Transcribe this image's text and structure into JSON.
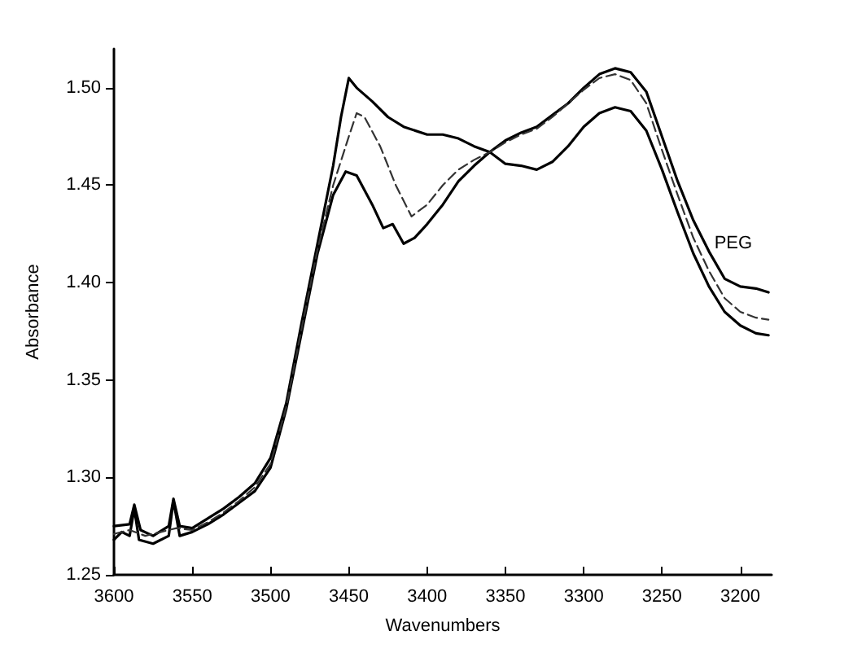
{
  "chart_data": {
    "type": "line",
    "xlabel": "Wavenumbers",
    "ylabel": "Absorbance",
    "xlim": [
      3600,
      3180
    ],
    "xticks": [
      3600,
      3550,
      3500,
      3450,
      3400,
      3350,
      3300,
      3250,
      3200
    ],
    "ylim": [
      1.25,
      1.52
    ],
    "yticks": [
      1.25,
      {
        "value": 1.3,
        "label": "1.30"
      },
      1.35,
      {
        "value": 1.4,
        "label": "1.40"
      },
      1.45,
      {
        "value": 1.5,
        "label": "1.50"
      }
    ],
    "grid": false,
    "legend": false,
    "marker": "none",
    "series": [
      {
        "name": "PEG",
        "color": "#000000",
        "line_style": "solid",
        "x": [
          3600,
          3595,
          3590,
          3587,
          3584,
          3575,
          3565,
          3562,
          3558,
          3550,
          3540,
          3530,
          3520,
          3510,
          3500,
          3490,
          3480,
          3470,
          3460,
          3452,
          3445,
          3435,
          3428,
          3422,
          3415,
          3408,
          3400,
          3390,
          3380,
          3370,
          3360,
          3350,
          3340,
          3330,
          3320,
          3310,
          3300,
          3290,
          3280,
          3270,
          3260,
          3250,
          3240,
          3230,
          3220,
          3210,
          3200,
          3190,
          3182
        ],
        "values": [
          1.268,
          1.272,
          1.27,
          1.284,
          1.268,
          1.266,
          1.27,
          1.288,
          1.27,
          1.272,
          1.276,
          1.281,
          1.287,
          1.293,
          1.305,
          1.335,
          1.375,
          1.415,
          1.445,
          1.457,
          1.455,
          1.44,
          1.428,
          1.43,
          1.42,
          1.423,
          1.43,
          1.44,
          1.452,
          1.46,
          1.467,
          1.473,
          1.477,
          1.48,
          1.486,
          1.492,
          1.5,
          1.507,
          1.51,
          1.508,
          1.498,
          1.475,
          1.452,
          1.432,
          1.416,
          1.402,
          1.398,
          1.397,
          1.395
        ]
      },
      {
        "color": "#000000",
        "line_style": "solid",
        "x": [
          3600,
          3590,
          3587,
          3583,
          3575,
          3565,
          3562,
          3558,
          3550,
          3540,
          3530,
          3520,
          3510,
          3500,
          3490,
          3480,
          3470,
          3460,
          3455,
          3450,
          3445,
          3435,
          3425,
          3415,
          3400,
          3390,
          3380,
          3370,
          3360,
          3350,
          3340,
          3330,
          3320,
          3310,
          3300,
          3290,
          3280,
          3270,
          3260,
          3250,
          3240,
          3230,
          3220,
          3210,
          3200,
          3190,
          3182
        ],
        "values": [
          1.275,
          1.276,
          1.286,
          1.273,
          1.27,
          1.275,
          1.289,
          1.275,
          1.274,
          1.279,
          1.284,
          1.29,
          1.297,
          1.31,
          1.338,
          1.38,
          1.42,
          1.46,
          1.485,
          1.505,
          1.5,
          1.493,
          1.485,
          1.48,
          1.476,
          1.476,
          1.474,
          1.47,
          1.467,
          1.461,
          1.46,
          1.458,
          1.462,
          1.47,
          1.48,
          1.487,
          1.49,
          1.488,
          1.478,
          1.458,
          1.436,
          1.415,
          1.398,
          1.385,
          1.378,
          1.374,
          1.373
        ]
      },
      {
        "color": "#333333",
        "line_style": "dashed",
        "x": [
          3600,
          3590,
          3580,
          3570,
          3560,
          3550,
          3540,
          3530,
          3520,
          3510,
          3500,
          3490,
          3480,
          3470,
          3460,
          3450,
          3445,
          3440,
          3430,
          3420,
          3410,
          3400,
          3390,
          3380,
          3370,
          3360,
          3350,
          3340,
          3330,
          3320,
          3310,
          3300,
          3290,
          3280,
          3270,
          3260,
          3250,
          3240,
          3230,
          3220,
          3210,
          3200,
          3190,
          3182
        ],
        "values": [
          1.271,
          1.273,
          1.27,
          1.272,
          1.274,
          1.273,
          1.277,
          1.282,
          1.288,
          1.295,
          1.307,
          1.336,
          1.377,
          1.417,
          1.45,
          1.475,
          1.487,
          1.485,
          1.47,
          1.45,
          1.434,
          1.44,
          1.45,
          1.458,
          1.463,
          1.467,
          1.472,
          1.476,
          1.479,
          1.485,
          1.492,
          1.499,
          1.505,
          1.507,
          1.504,
          1.492,
          1.468,
          1.445,
          1.423,
          1.406,
          1.392,
          1.385,
          1.382,
          1.381
        ]
      }
    ]
  }
}
